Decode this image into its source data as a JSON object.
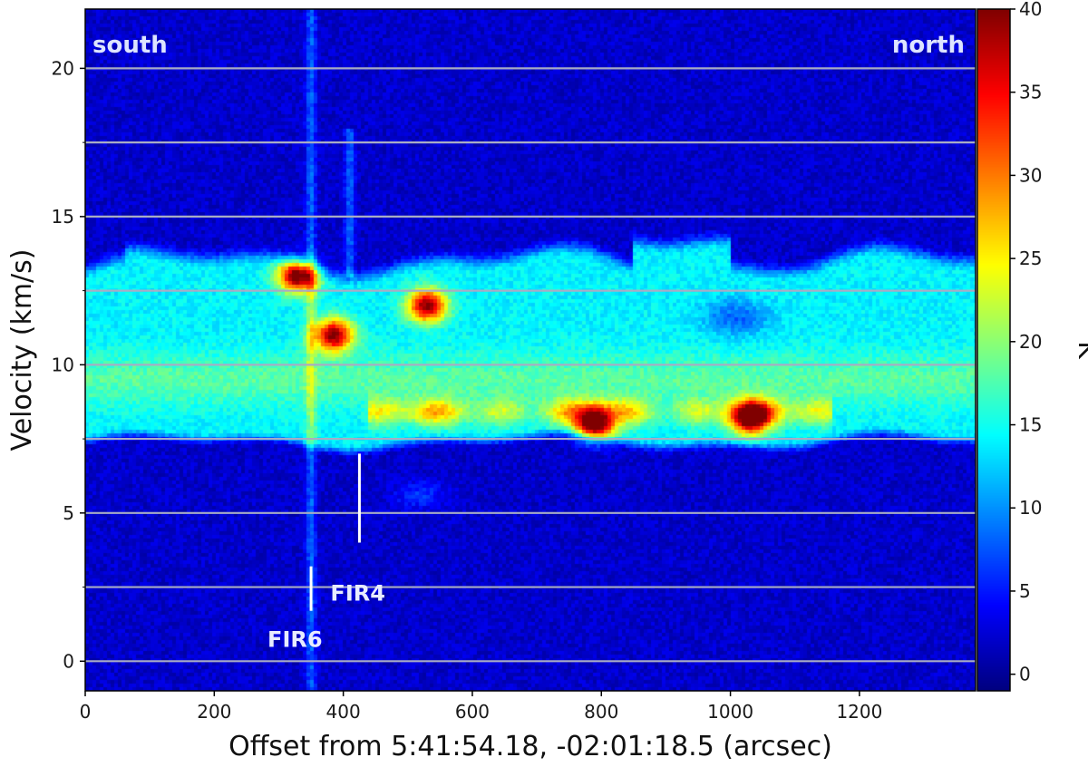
{
  "chart_data": {
    "type": "heatmap",
    "xlabel": "Offset from 5:41:54.18, -02:01:18.5 (arcsec)",
    "ylabel": "Velocity (km/s)",
    "colorbar_label": "K",
    "xlim": [
      0,
      1380
    ],
    "ylim": [
      -1,
      22
    ],
    "x_ticks": [
      0,
      200,
      400,
      600,
      800,
      1000,
      1200
    ],
    "y_ticks": [
      0,
      5,
      10,
      15,
      20
    ],
    "colorbar_range": [
      -1,
      40
    ],
    "colorbar_ticks": [
      0,
      5,
      10,
      15,
      20,
      25,
      30,
      35,
      40
    ],
    "colormap": "jet",
    "grid": "horizontal",
    "grid_lines": [
      0,
      2.5,
      5,
      7.5,
      10,
      12.5,
      15,
      17.5,
      20
    ],
    "grid_color": "#a8acc4",
    "corner_labels": {
      "left": "south",
      "right": "north"
    },
    "markers": [
      {
        "name": "FIR6",
        "x": 350,
        "y_range": [
          1.7,
          3.2
        ]
      },
      {
        "name": "FIR4",
        "x": 425,
        "y_range": [
          4.0,
          7.0
        ]
      }
    ],
    "features": {
      "background": 2,
      "main_band": {
        "v_low": 7.5,
        "v_high": 13.5,
        "level": 14
      },
      "band_core": {
        "v_center": 9.5,
        "level": 18
      },
      "blobs": [
        {
          "x": 330,
          "y": 13.0,
          "peak": 40
        },
        {
          "x": 385,
          "y": 11.0,
          "peak": 38
        },
        {
          "x": 530,
          "y": 12.0,
          "peak": 38
        },
        {
          "x": 790,
          "y": 8.0,
          "peak": 40
        },
        {
          "x": 1030,
          "y": 8.2,
          "peak": 38
        }
      ],
      "outflow_columns": [
        {
          "x": 350,
          "v_low": -1,
          "v_high": 22
        },
        {
          "x": 410,
          "v_low": 13,
          "v_high": 18
        }
      ]
    }
  }
}
